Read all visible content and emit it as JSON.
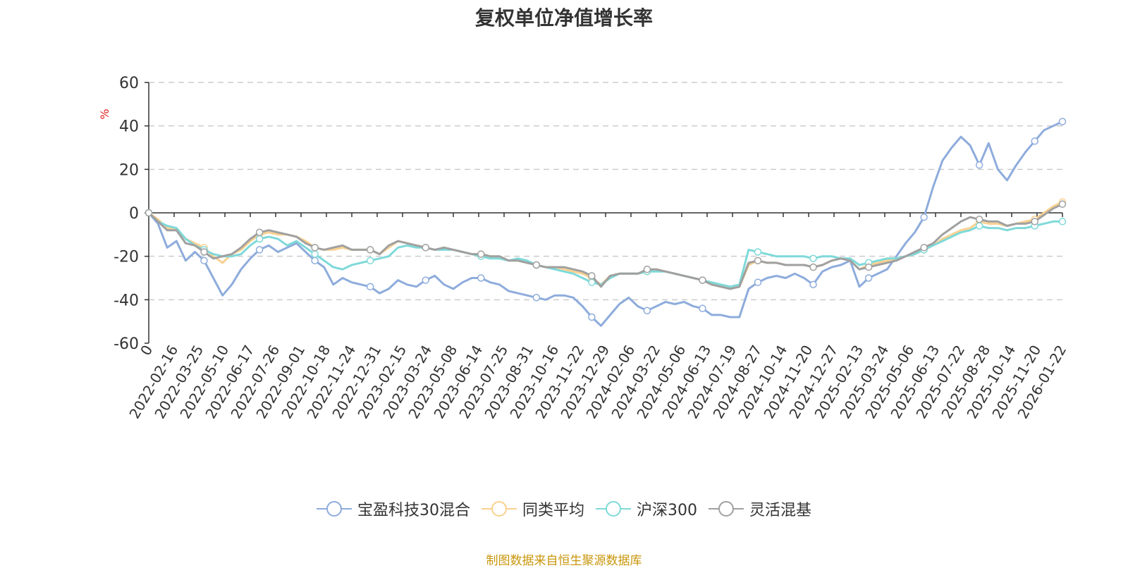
{
  "chart_data": {
    "type": "line",
    "title": "复权单位净值增长率",
    "ylabel": "%",
    "ylim": [
      -60,
      60
    ],
    "yticks": [
      60,
      40,
      20,
      0,
      -20,
      -40,
      -60
    ],
    "xtick_labels": [
      "0",
      "2022-02-16",
      "2022-03-25",
      "2022-05-10",
      "2022-06-17",
      "2022-07-26",
      "2022-09-01",
      "2022-10-18",
      "2022-11-24",
      "2022-12-31",
      "2023-02-15",
      "2023-03-24",
      "2023-05-08",
      "2023-06-14",
      "2023-07-25",
      "2023-08-31",
      "2023-10-16",
      "2023-11-22",
      "2023-12-29",
      "2024-02-06",
      "2024-03-22",
      "2024-05-06",
      "2024-06-13",
      "2024-07-19",
      "2024-08-27",
      "2024-10-14",
      "2024-11-20",
      "2024-12-27",
      "2025-02-13",
      "2025-03-24",
      "2025-05-06",
      "2025-06-13",
      "2025-07-22",
      "2025-08-28",
      "2025-10-14",
      "2025-11-20",
      "2026-01-22"
    ],
    "grid": true,
    "legend_position": "bottom",
    "series": [
      {
        "name": "宝盈科技30混合",
        "color": "#8eacdc",
        "values": [
          0,
          -5,
          -16,
          -13,
          -22,
          -18,
          -22,
          -30,
          -38,
          -33,
          -26,
          -21,
          -17,
          -15,
          -18,
          -16,
          -14,
          -18,
          -22,
          -25,
          -33,
          -30,
          -32,
          -33,
          -34,
          -37,
          -35,
          -31,
          -33,
          -34,
          -31,
          -29,
          -33,
          -35,
          -32,
          -30,
          -30,
          -32,
          -33,
          -36,
          -37,
          -38,
          -39,
          -40,
          -38,
          -38,
          -39,
          -43,
          -48,
          -52,
          -47,
          -42,
          -39,
          -43,
          -45,
          -43,
          -41,
          -42,
          -41,
          -43,
          -44,
          -47,
          -47,
          -48,
          -48,
          -35,
          -32,
          -30,
          -29,
          -30,
          -28,
          -30,
          -33,
          -27,
          -25,
          -24,
          -22,
          -34,
          -30,
          -28,
          -26,
          -20,
          -14,
          -9,
          -2,
          12,
          24,
          30,
          35,
          31,
          22,
          32,
          20,
          15,
          22,
          28,
          33,
          38,
          40,
          42
        ]
      },
      {
        "name": "同类平均",
        "color": "#f9d190",
        "values": [
          0,
          -3,
          -7,
          -8,
          -12,
          -14,
          -16,
          -20,
          -23,
          -19,
          -17,
          -13,
          -10,
          -9,
          -10,
          -10,
          -11,
          -13,
          -16,
          -17,
          -17,
          -16,
          -17,
          -17,
          -17,
          -19,
          -16,
          -13,
          -14,
          -15,
          -16,
          -17,
          -16,
          -17,
          -18,
          -19,
          -19,
          -20,
          -20,
          -22,
          -22,
          -23,
          -24,
          -25,
          -25,
          -26,
          -27,
          -28,
          -30,
          -33,
          -29,
          -28,
          -28,
          -28,
          -27,
          -26,
          -27,
          -28,
          -29,
          -30,
          -31,
          -33,
          -34,
          -35,
          -34,
          -24,
          -22,
          -23,
          -23,
          -24,
          -24,
          -24,
          -25,
          -24,
          -22,
          -21,
          -22,
          -26,
          -24,
          -23,
          -22,
          -21,
          -20,
          -19,
          -17,
          -15,
          -12,
          -10,
          -8,
          -7,
          -4,
          -5,
          -5,
          -6,
          -5,
          -4,
          -3,
          0,
          3,
          5
        ]
      },
      {
        "name": "沪深300",
        "color": "#7fd9d9",
        "values": [
          0,
          -4,
          -6,
          -7,
          -12,
          -15,
          -17,
          -19,
          -20,
          -20,
          -19,
          -15,
          -12,
          -11,
          -12,
          -15,
          -13,
          -16,
          -19,
          -22,
          -25,
          -26,
          -24,
          -23,
          -22,
          -21,
          -20,
          -16,
          -15,
          -16,
          -16,
          -17,
          -17,
          -17,
          -18,
          -19,
          -20,
          -21,
          -21,
          -22,
          -21,
          -22,
          -24,
          -25,
          -26,
          -27,
          -28,
          -30,
          -32,
          -33,
          -30,
          -28,
          -28,
          -28,
          -27,
          -27,
          -27,
          -28,
          -29,
          -30,
          -31,
          -32,
          -33,
          -34,
          -33,
          -17,
          -18,
          -19,
          -20,
          -20,
          -20,
          -20,
          -21,
          -20,
          -20,
          -21,
          -21,
          -24,
          -23,
          -22,
          -21,
          -21,
          -20,
          -19,
          -17,
          -15,
          -13,
          -11,
          -9,
          -8,
          -6,
          -7,
          -7,
          -8,
          -7,
          -7,
          -6,
          -5,
          -4,
          -4
        ]
      },
      {
        "name": "灵活混基",
        "color": "#a0a0a0",
        "values": [
          0,
          -4,
          -8,
          -8,
          -14,
          -15,
          -18,
          -21,
          -20,
          -19,
          -16,
          -12,
          -9,
          -8,
          -9,
          -10,
          -11,
          -14,
          -16,
          -17,
          -16,
          -15,
          -17,
          -17,
          -17,
          -19,
          -15,
          -13,
          -14,
          -15,
          -16,
          -17,
          -16,
          -17,
          -18,
          -19,
          -19,
          -20,
          -20,
          -22,
          -22,
          -23,
          -24,
          -25,
          -25,
          -25,
          -26,
          -27,
          -29,
          -34,
          -29,
          -28,
          -28,
          -28,
          -26,
          -26,
          -27,
          -28,
          -29,
          -30,
          -31,
          -33,
          -34,
          -35,
          -34,
          -23,
          -22,
          -23,
          -23,
          -24,
          -24,
          -24,
          -25,
          -24,
          -22,
          -21,
          -22,
          -26,
          -25,
          -24,
          -23,
          -22,
          -20,
          -18,
          -16,
          -14,
          -10,
          -7,
          -4,
          -2,
          -3,
          -4,
          -4,
          -6,
          -5,
          -5,
          -4,
          -1,
          2,
          4
        ]
      }
    ]
  },
  "legend": {
    "items": [
      {
        "label": "宝盈科技30混合",
        "color": "#8eacdc"
      },
      {
        "label": "同类平均",
        "color": "#f9d190"
      },
      {
        "label": "沪深300",
        "color": "#7fd9d9"
      },
      {
        "label": "灵活混基",
        "color": "#a0a0a0"
      }
    ]
  },
  "source": {
    "text": "制图数据来自恒生聚源数据库",
    "color": "#c8960c"
  },
  "ylabel_color": "#e02020"
}
